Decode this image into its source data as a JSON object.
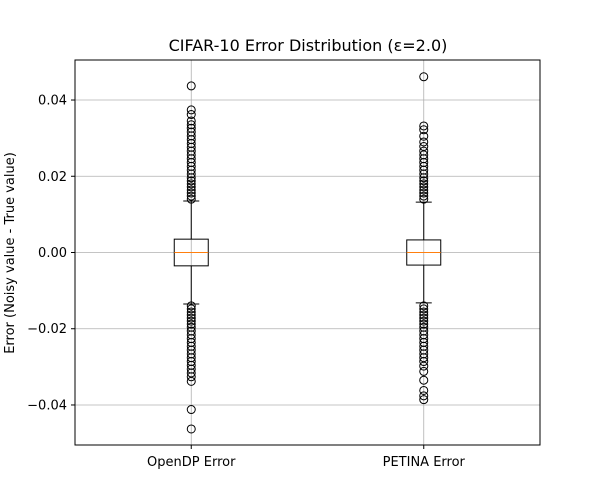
{
  "chart_data": {
    "type": "box",
    "title": "CIFAR-10 Error Distribution (ε=2.0)",
    "xlabel": "",
    "ylabel": "Error (Noisy value - True value)",
    "ylim": [
      -0.0505,
      0.0505
    ],
    "yticks": [
      -0.04,
      -0.02,
      0.0,
      0.02,
      0.04
    ],
    "ytick_labels": [
      "−0.04",
      "−0.02",
      "0.00",
      "0.02",
      "0.04"
    ],
    "grid": true,
    "categories": [
      "OpenDP Error",
      "PETINA Error"
    ],
    "series": [
      {
        "q1": -0.0035,
        "median": 0.0,
        "q3": 0.0035,
        "whisker_low": -0.0135,
        "whisker_high": 0.0135,
        "fliers": [
          0.0437,
          0.0374,
          0.0362,
          0.0345,
          0.0335,
          0.0326,
          0.0316,
          0.0306,
          0.0296,
          0.0286,
          0.0276,
          0.0266,
          0.0256,
          0.0246,
          0.0236,
          0.0226,
          0.0216,
          0.0206,
          0.0196,
          0.0188,
          0.018,
          0.0172,
          0.0164,
          0.0156,
          0.0148,
          0.014,
          -0.014,
          -0.0148,
          -0.0156,
          -0.0164,
          -0.0172,
          -0.018,
          -0.0188,
          -0.0196,
          -0.0206,
          -0.0216,
          -0.0226,
          -0.0236,
          -0.0246,
          -0.0256,
          -0.0266,
          -0.0276,
          -0.0286,
          -0.0296,
          -0.0306,
          -0.0316,
          -0.0326,
          -0.0338,
          -0.0412,
          -0.0463
        ]
      },
      {
        "q1": -0.0033,
        "median": 0.0,
        "q3": 0.0033,
        "whisker_low": -0.0132,
        "whisker_high": 0.0132,
        "fliers": [
          0.0461,
          0.0332,
          0.0322,
          0.0305,
          0.029,
          0.0278,
          0.0266,
          0.0256,
          0.0246,
          0.0236,
          0.0226,
          0.0216,
          0.0206,
          0.0196,
          0.0188,
          0.018,
          0.0172,
          0.0164,
          0.0156,
          0.0148,
          0.014,
          -0.014,
          -0.0148,
          -0.0156,
          -0.0164,
          -0.0172,
          -0.018,
          -0.0188,
          -0.0196,
          -0.0206,
          -0.0216,
          -0.0226,
          -0.0236,
          -0.0246,
          -0.0256,
          -0.0266,
          -0.0276,
          -0.0286,
          -0.0298,
          -0.0312,
          -0.0335,
          -0.0362,
          -0.0376,
          -0.0386
        ]
      }
    ]
  }
}
